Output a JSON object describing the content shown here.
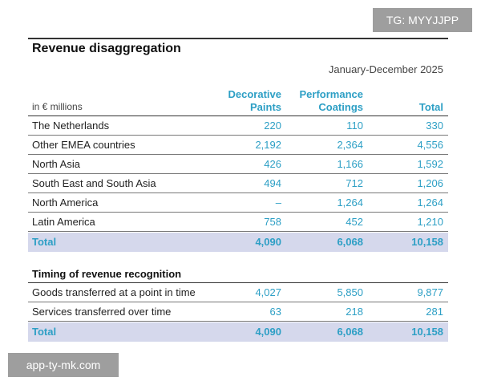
{
  "watermarks": {
    "tg": "TG: MYYJJPP",
    "site": "app-ty-mk.com"
  },
  "table": {
    "title": "Revenue disaggregation",
    "period": "January-December 2025",
    "units_label": "in € millions",
    "columns": {
      "decorative": [
        "Decorative",
        "Paints"
      ],
      "performance": [
        "Performance",
        "Coatings"
      ],
      "total": "Total"
    },
    "regions": [
      {
        "label": "The Netherlands",
        "decorative": "220",
        "performance": "110",
        "total": "330"
      },
      {
        "label": "Other EMEA countries",
        "decorative": "2,192",
        "performance": "2,364",
        "total": "4,556"
      },
      {
        "label": "North Asia",
        "decorative": "426",
        "performance": "1,166",
        "total": "1,592"
      },
      {
        "label": "South East and South Asia",
        "decorative": "494",
        "performance": "712",
        "total": "1,206"
      },
      {
        "label": "North America",
        "decorative": "–",
        "performance": "1,264",
        "total": "1,264"
      },
      {
        "label": "Latin America",
        "decorative": "758",
        "performance": "452",
        "total": "1,210"
      }
    ],
    "regions_total": {
      "label": "Total",
      "decorative": "4,090",
      "performance": "6,068",
      "total": "10,158"
    },
    "timing_title": "Timing of revenue recognition",
    "timing": [
      {
        "label": "Goods transferred at a point in time",
        "decorative": "4,027",
        "performance": "5,850",
        "total": "9,877"
      },
      {
        "label": "Services transferred over time",
        "decorative": "63",
        "performance": "218",
        "total": "281"
      }
    ],
    "timing_total": {
      "label": "Total",
      "decorative": "4,090",
      "performance": "6,068",
      "total": "10,158"
    }
  }
}
